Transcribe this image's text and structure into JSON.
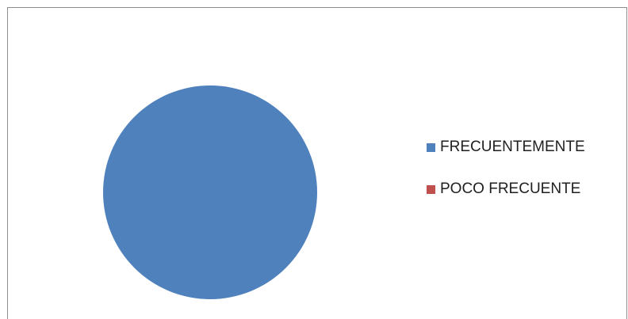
{
  "chart_data": {
    "type": "pie",
    "title": "",
    "categories": [
      "FRECUENTEMENTE",
      "POCO FRECUENTE"
    ],
    "values": [
      100,
      0
    ],
    "colors": [
      "#4f81bd",
      "#c0504d"
    ],
    "legend_position": "right"
  }
}
